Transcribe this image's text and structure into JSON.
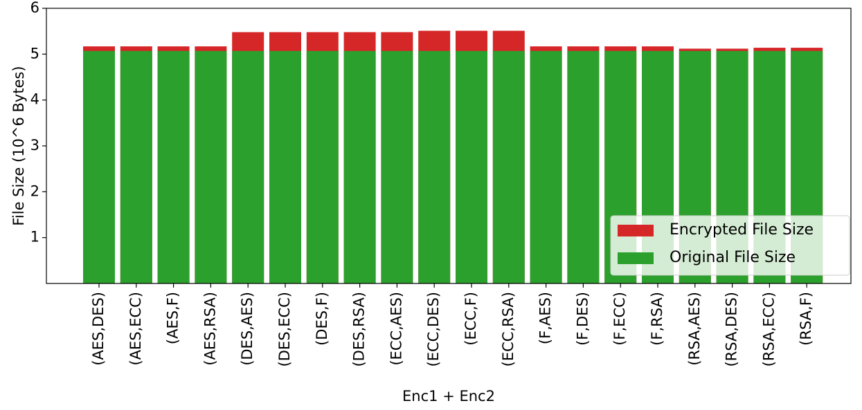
{
  "chart_data": {
    "type": "bar",
    "xlabel": "Enc1 + Enc2",
    "ylabel": "File Size (10^6 Bytes)",
    "categories": [
      "(AES,DES)",
      "(AES,ECC)",
      "(AES,F)",
      "(AES,RSA)",
      "(DES,AES)",
      "(DES,ECC)",
      "(DES,F)",
      "(DES,RSA)",
      "(ECC,AES)",
      "(ECC,DES)",
      "(ECC,F)",
      "(ECC,RSA)",
      "(F,AES)",
      "(F,DES)",
      "(F,ECC)",
      "(F,RSA)",
      "(RSA,AES)",
      "(RSA,DES)",
      "(RSA,ECC)",
      "(RSA,F)"
    ],
    "series": [
      {
        "name": "Encrypted File Size",
        "color": "#d62728",
        "values": [
          5.17,
          5.17,
          5.17,
          5.17,
          5.48,
          5.48,
          5.48,
          5.48,
          5.48,
          5.51,
          5.51,
          5.51,
          5.17,
          5.17,
          5.17,
          5.17,
          5.12,
          5.12,
          5.14,
          5.14
        ]
      },
      {
        "name": "Original File Size",
        "color": "#2ca02c",
        "values": [
          5.07,
          5.07,
          5.07,
          5.07,
          5.07,
          5.07,
          5.07,
          5.07,
          5.07,
          5.07,
          5.07,
          5.07,
          5.07,
          5.07,
          5.07,
          5.07,
          5.07,
          5.07,
          5.07,
          5.07
        ]
      }
    ],
    "ylim": [
      0,
      6
    ],
    "yticks": [
      1,
      2,
      3,
      4,
      5,
      6
    ],
    "legend": "lower right"
  }
}
